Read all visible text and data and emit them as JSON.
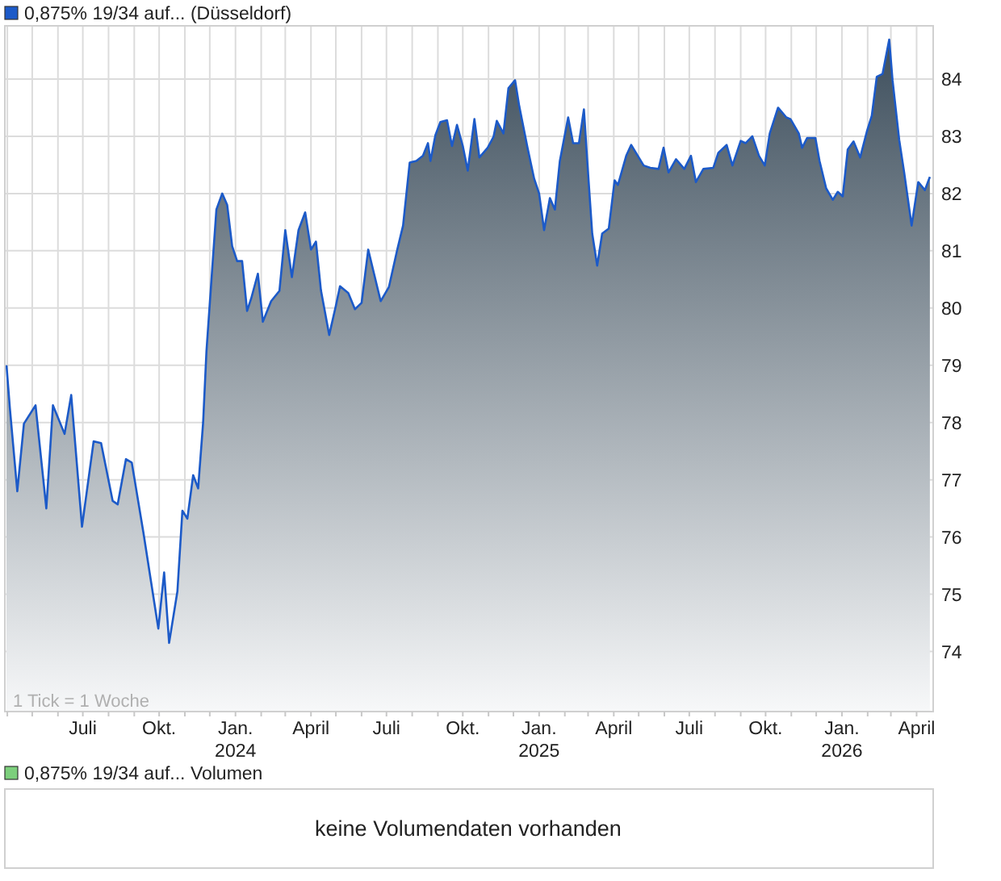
{
  "chart_data": [
    {
      "type": "area",
      "legend": "top left",
      "grid": true,
      "annotations": [
        "1 Tick = 1 Woche"
      ],
      "xlim": [
        "2023-03-29",
        "2026-04-21"
      ],
      "ylim": [
        72.95,
        84.93
      ],
      "yticks": [
        74,
        75,
        76,
        77,
        78,
        79,
        80,
        81,
        82,
        83,
        84
      ],
      "xticks": [
        {
          "value": "2023-04-01",
          "label": null
        },
        {
          "value": "2023-05-01",
          "label": null
        },
        {
          "value": "2023-06-01",
          "label": null
        },
        {
          "value": "2023-07-01",
          "label": "Juli"
        },
        {
          "value": "2023-08-01",
          "label": null
        },
        {
          "value": "2023-09-01",
          "label": null
        },
        {
          "value": "2023-10-01",
          "label": "Okt."
        },
        {
          "value": "2023-11-01",
          "label": null
        },
        {
          "value": "2023-12-01",
          "label": null
        },
        {
          "value": "2024-01-01",
          "label": "Jan. 2024"
        },
        {
          "value": "2024-02-01",
          "label": null
        },
        {
          "value": "2024-03-01",
          "label": null
        },
        {
          "value": "2024-04-01",
          "label": "April"
        },
        {
          "value": "2024-05-01",
          "label": null
        },
        {
          "value": "2024-06-01",
          "label": null
        },
        {
          "value": "2024-07-01",
          "label": "Juli"
        },
        {
          "value": "2024-08-01",
          "label": null
        },
        {
          "value": "2024-09-01",
          "label": null
        },
        {
          "value": "2024-10-01",
          "label": "Okt."
        },
        {
          "value": "2024-11-01",
          "label": null
        },
        {
          "value": "2024-12-01",
          "label": null
        },
        {
          "value": "2025-01-01",
          "label": "Jan. 2025"
        },
        {
          "value": "2025-02-01",
          "label": null
        },
        {
          "value": "2025-03-01",
          "label": null
        },
        {
          "value": "2025-04-01",
          "label": "April"
        },
        {
          "value": "2025-05-01",
          "label": null
        },
        {
          "value": "2025-06-01",
          "label": null
        },
        {
          "value": "2025-07-01",
          "label": "Juli"
        },
        {
          "value": "2025-08-01",
          "label": null
        },
        {
          "value": "2025-09-01",
          "label": null
        },
        {
          "value": "2025-10-01",
          "label": "Okt."
        },
        {
          "value": "2025-11-01",
          "label": null
        },
        {
          "value": "2025-12-01",
          "label": null
        },
        {
          "value": "2026-01-01",
          "label": "Jan. 2026"
        },
        {
          "value": "2026-02-01",
          "label": null
        },
        {
          "value": "2026-03-01",
          "label": null
        },
        {
          "value": "2026-04-01",
          "label": "April"
        }
      ],
      "series": [
        {
          "name": "0,875% 19/34 auf... (Düsseldorf)",
          "color": "#1c5ac8",
          "x": [
            "2023-03-31",
            "2023-04-04",
            "2023-04-13",
            "2023-04-21",
            "2023-05-05",
            "2023-05-18",
            "2023-05-26",
            "2023-06-09",
            "2023-06-17",
            "2023-06-30",
            "2023-07-14",
            "2023-07-23",
            "2023-08-06",
            "2023-08-12",
            "2023-08-22",
            "2023-08-29",
            "2023-09-12",
            "2023-09-30",
            "2023-10-07",
            "2023-10-13",
            "2023-10-23",
            "2023-10-29",
            "2023-11-04",
            "2023-11-11",
            "2023-11-17",
            "2023-11-23",
            "2023-11-27",
            "2023-12-05",
            "2023-12-09",
            "2023-12-16",
            "2023-12-22",
            "2023-12-28",
            "2024-01-03",
            "2024-01-09",
            "2024-01-15",
            "2024-01-20",
            "2024-01-28",
            "2024-02-03",
            "2024-02-13",
            "2024-02-23",
            "2024-03-01",
            "2024-03-09",
            "2024-03-17",
            "2024-03-25",
            "2024-04-01",
            "2024-04-07",
            "2024-04-13",
            "2024-04-23",
            "2024-05-01",
            "2024-05-06",
            "2024-05-16",
            "2024-05-24",
            "2024-06-01",
            "2024-06-09",
            "2024-06-16",
            "2024-06-24",
            "2024-07-04",
            "2024-07-14",
            "2024-07-21",
            "2024-07-29",
            "2024-08-06",
            "2024-08-14",
            "2024-08-20",
            "2024-08-23",
            "2024-08-29",
            "2024-09-04",
            "2024-09-12",
            "2024-09-18",
            "2024-09-24",
            "2024-10-01",
            "2024-10-07",
            "2024-10-15",
            "2024-10-21",
            "2024-10-31",
            "2024-11-07",
            "2024-11-11",
            "2024-11-19",
            "2024-11-25",
            "2024-12-03",
            "2024-12-08",
            "2024-12-18",
            "2024-12-26",
            "2025-01-01",
            "2025-01-07",
            "2025-01-14",
            "2025-01-20",
            "2025-01-26",
            "2025-02-05",
            "2025-02-11",
            "2025-02-18",
            "2025-02-24",
            "2025-02-28",
            "2025-03-06",
            "2025-03-12",
            "2025-03-18",
            "2025-03-26",
            "2025-04-02",
            "2025-04-06",
            "2025-04-16",
            "2025-04-22",
            "2025-05-07",
            "2025-05-15",
            "2025-05-25",
            "2025-05-31",
            "2025-06-06",
            "2025-06-15",
            "2025-06-25",
            "2025-07-03",
            "2025-07-09",
            "2025-07-18",
            "2025-07-30",
            "2025-08-05",
            "2025-08-15",
            "2025-08-22",
            "2025-09-01",
            "2025-09-07",
            "2025-09-15",
            "2025-09-23",
            "2025-09-30",
            "2025-10-06",
            "2025-10-16",
            "2025-10-26",
            "2025-10-31",
            "2025-11-10",
            "2025-11-14",
            "2025-11-20",
            "2025-11-30",
            "2025-12-05",
            "2025-12-13",
            "2025-12-21",
            "2025-12-27",
            "2026-01-02",
            "2026-01-08",
            "2026-01-15",
            "2026-01-23",
            "2026-01-31",
            "2026-02-06",
            "2026-02-12",
            "2026-02-19",
            "2026-02-27",
            "2026-03-03",
            "2026-03-11",
            "2026-03-17",
            "2026-03-26",
            "2026-04-03",
            "2026-04-11",
            "2026-04-17"
          ],
          "values": [
            79.0,
            78.26,
            76.8,
            77.98,
            78.3,
            76.5,
            78.3,
            77.8,
            78.48,
            76.18,
            77.67,
            77.64,
            76.63,
            76.57,
            77.36,
            77.3,
            76.08,
            74.4,
            75.38,
            74.15,
            75.05,
            76.46,
            76.32,
            77.08,
            76.85,
            78.0,
            79.24,
            80.9,
            81.72,
            82.0,
            81.8,
            81.08,
            80.82,
            80.82,
            79.95,
            80.17,
            80.6,
            79.76,
            80.12,
            80.3,
            81.36,
            80.54,
            81.36,
            81.67,
            81.02,
            81.16,
            80.31,
            79.53,
            80.04,
            80.38,
            80.26,
            79.98,
            80.09,
            81.02,
            80.6,
            80.12,
            80.37,
            81.02,
            81.44,
            82.54,
            82.57,
            82.66,
            82.88,
            82.57,
            83.02,
            83.25,
            83.28,
            82.83,
            83.2,
            82.83,
            82.4,
            83.3,
            82.63,
            82.8,
            82.99,
            83.27,
            83.05,
            83.84,
            83.98,
            83.53,
            82.8,
            82.26,
            82.0,
            81.36,
            81.92,
            81.72,
            82.57,
            83.33,
            82.88,
            82.88,
            83.47,
            82.57,
            81.3,
            80.74,
            81.3,
            81.39,
            82.23,
            82.15,
            82.66,
            82.85,
            82.49,
            82.45,
            82.43,
            82.8,
            82.37,
            82.6,
            82.43,
            82.66,
            82.2,
            82.43,
            82.45,
            82.71,
            82.85,
            82.49,
            82.92,
            82.88,
            83.0,
            82.66,
            82.49,
            83.05,
            83.5,
            83.33,
            83.3,
            83.05,
            82.8,
            82.97,
            82.97,
            82.57,
            82.09,
            81.89,
            82.03,
            81.95,
            82.77,
            82.91,
            82.63,
            83.08,
            83.36,
            84.04,
            84.09,
            84.69,
            83.98,
            82.94,
            82.37,
            81.44,
            82.2,
            82.06,
            82.29
          ]
        }
      ]
    },
    {
      "type": "other",
      "title": "0,875% 19/34 auf... Volumen",
      "annotations": [
        "keine Volumendaten vorhanden"
      ]
    }
  ]
}
